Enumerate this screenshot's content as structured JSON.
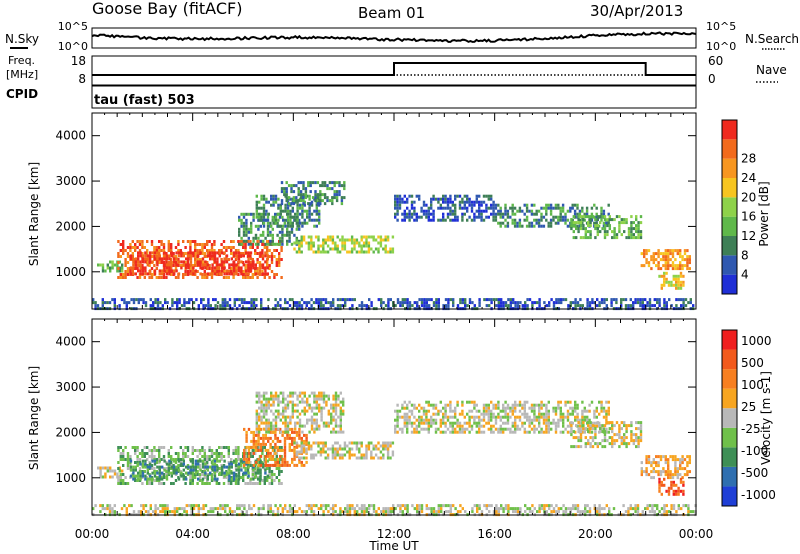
{
  "header": {
    "station": "Goose Bay (fitACF)",
    "beam": "Beam 01",
    "date": "30/Apr/2013"
  },
  "left_labels": {
    "nsky": "N.Sky",
    "freq_line1": "Freq.",
    "freq_line2": "[MHz]",
    "cpid": "CPID",
    "cpid_value": "tau (fast) 503"
  },
  "right_labels": {
    "nsearch": "N.Search",
    "nave": "Nave"
  },
  "strip_axes": {
    "noise_left_ticks": [
      "10^5",
      "10^0"
    ],
    "noise_right_ticks": [
      "10^5",
      "10^0"
    ],
    "freq_left_ticks": [
      "18",
      "8"
    ],
    "nave_right_ticks": [
      "60",
      "0"
    ]
  },
  "chart_data": [
    {
      "type": "heatmap",
      "title": "",
      "ylabel": "Slant Range [km]",
      "xlabel": "Time UT",
      "xlim": [
        0,
        24
      ],
      "ylim": [
        180,
        4500
      ],
      "x_tick_labels": [
        "00:00",
        "04:00",
        "08:00",
        "12:00",
        "16:00",
        "20:00",
        "00:00"
      ],
      "x_tick_values": [
        0,
        4,
        8,
        12,
        16,
        20,
        24
      ],
      "y_ticks": [
        1000,
        2000,
        3000,
        4000
      ],
      "colorbar": {
        "label": "Power [dB]",
        "ticks": [
          "4",
          "8",
          "12",
          "16",
          "20",
          "24",
          "28"
        ],
        "colors": [
          "#1f2fd6",
          "#2f58b0",
          "#3e7f56",
          "#5fb84a",
          "#8ed24a",
          "#f7c520",
          "#f79620",
          "#f26a1c",
          "#ef2a1f"
        ]
      },
      "echo_regions": [
        {
          "t_start": 0.2,
          "t_end": 1.2,
          "r_low": 1000,
          "r_high": 1250,
          "level": 3
        },
        {
          "t_start": 1.0,
          "t_end": 7.5,
          "r_low": 900,
          "r_high": 1700,
          "level": 7
        },
        {
          "t_start": 1.5,
          "t_end": 7.0,
          "r_low": 950,
          "r_high": 1450,
          "level": 8
        },
        {
          "t_start": 5.8,
          "t_end": 8.2,
          "r_low": 1600,
          "r_high": 2300,
          "level": 2
        },
        {
          "t_start": 6.5,
          "t_end": 9.0,
          "r_low": 2000,
          "r_high": 2700,
          "level": 2
        },
        {
          "t_start": 7.5,
          "t_end": 10.0,
          "r_low": 2500,
          "r_high": 3000,
          "level": 2
        },
        {
          "t_start": 8.0,
          "t_end": 12.0,
          "r_low": 1450,
          "r_high": 1800,
          "level": 4
        },
        {
          "t_start": 12.0,
          "t_end": 16.0,
          "r_low": 2150,
          "r_high": 2700,
          "level": 1
        },
        {
          "t_start": 16.0,
          "t_end": 20.5,
          "r_low": 2000,
          "r_high": 2500,
          "level": 2
        },
        {
          "t_start": 19.0,
          "t_end": 21.8,
          "r_low": 1750,
          "r_high": 2250,
          "level": 3
        },
        {
          "t_start": 21.8,
          "t_end": 23.8,
          "r_low": 1100,
          "r_high": 1500,
          "level": 6
        },
        {
          "t_start": 22.5,
          "t_end": 23.5,
          "r_low": 650,
          "r_high": 1000,
          "level": 5
        },
        {
          "t_start": 0.0,
          "t_end": 24.0,
          "r_low": 180,
          "r_high": 420,
          "level": 1
        }
      ]
    },
    {
      "type": "heatmap",
      "title": "",
      "ylabel": "Slant Range [km]",
      "xlabel": "Time UT",
      "xlim": [
        0,
        24
      ],
      "ylim": [
        180,
        4500
      ],
      "x_tick_labels": [
        "00:00",
        "04:00",
        "08:00",
        "12:00",
        "16:00",
        "20:00",
        "00:00"
      ],
      "x_tick_values": [
        0,
        4,
        8,
        12,
        16,
        20,
        24
      ],
      "y_ticks": [
        1000,
        2000,
        3000,
        4000
      ],
      "colorbar": {
        "label": "Velocity [m s-1]",
        "ticks": [
          "1000",
          "500",
          "100",
          "25",
          "-25",
          "-100",
          "-500",
          "-1000"
        ],
        "colors": [
          "#1f3fd6",
          "#2f6fb0",
          "#3e8f56",
          "#6fc04a",
          "#b8b8b8",
          "#f7a520",
          "#f77f20",
          "#f25a1c",
          "#ef1f1f"
        ]
      },
      "echo_regions": [
        {
          "t_start": 0.2,
          "t_end": 1.2,
          "r_low": 1000,
          "r_high": 1250,
          "level": 4
        },
        {
          "t_start": 1.0,
          "t_end": 7.5,
          "r_low": 900,
          "r_high": 1700,
          "level": 3
        },
        {
          "t_start": 1.5,
          "t_end": 7.0,
          "r_low": 1000,
          "r_high": 1400,
          "level": 2
        },
        {
          "t_start": 6.0,
          "t_end": 8.5,
          "r_low": 1300,
          "r_high": 2100,
          "level": 6
        },
        {
          "t_start": 6.5,
          "t_end": 10.0,
          "r_low": 2000,
          "r_high": 2900,
          "level": 4
        },
        {
          "t_start": 8.0,
          "t_end": 12.0,
          "r_low": 1450,
          "r_high": 1800,
          "level": 4
        },
        {
          "t_start": 12.0,
          "t_end": 20.5,
          "r_low": 2000,
          "r_high": 2700,
          "level": 4
        },
        {
          "t_start": 19.0,
          "t_end": 21.8,
          "r_low": 1700,
          "r_high": 2250,
          "level": 4
        },
        {
          "t_start": 21.8,
          "t_end": 23.8,
          "r_low": 1000,
          "r_high": 1500,
          "level": 5
        },
        {
          "t_start": 22.5,
          "t_end": 23.5,
          "r_low": 650,
          "r_high": 1000,
          "level": 7
        },
        {
          "t_start": 0.0,
          "t_end": 24.0,
          "r_low": 180,
          "r_high": 420,
          "level": 4
        }
      ]
    }
  ]
}
